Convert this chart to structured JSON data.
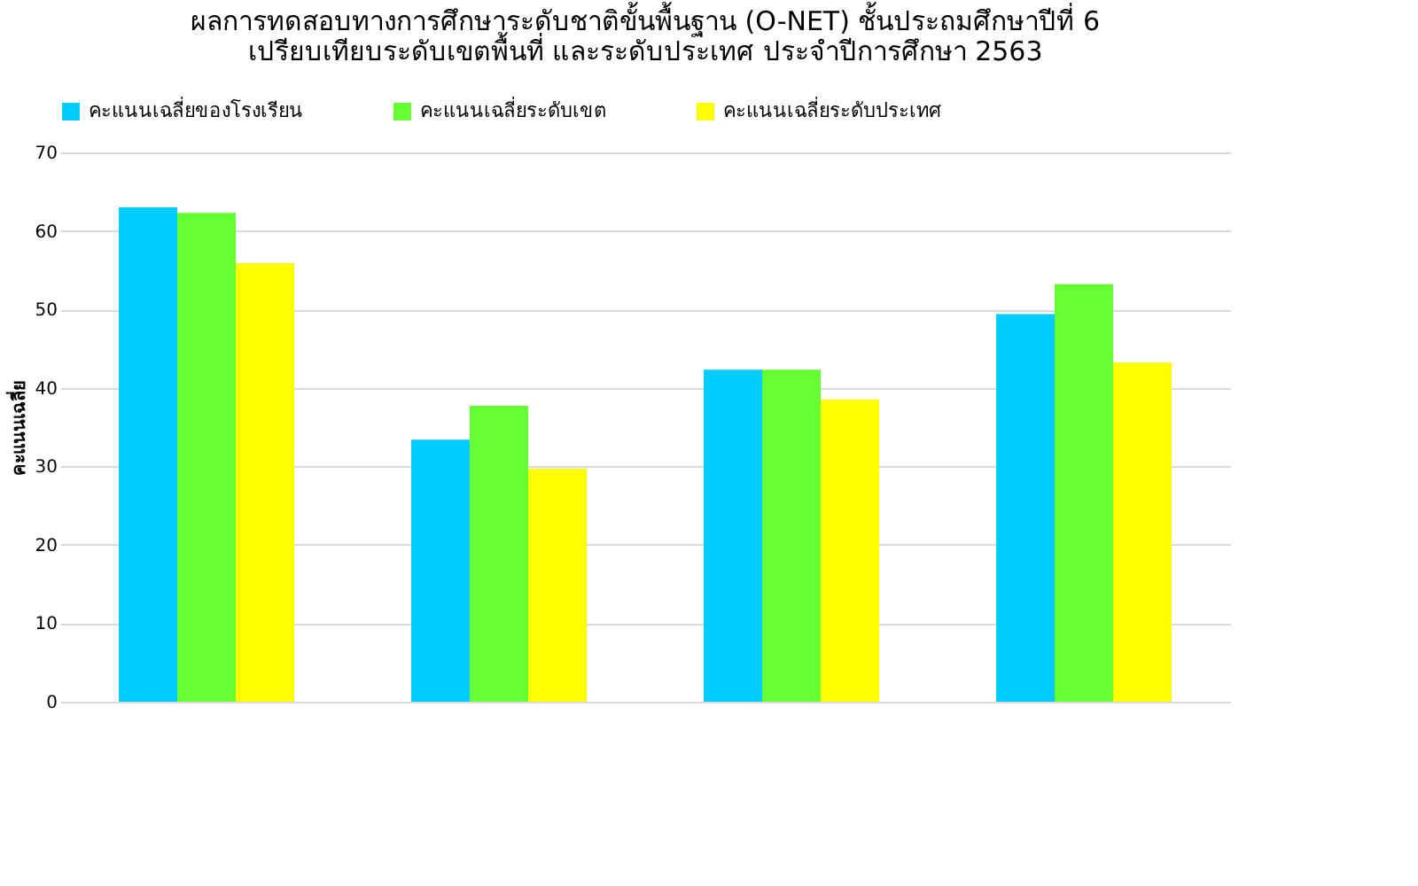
{
  "chart_data": {
    "type": "bar",
    "title": [
      "ผลการทดสอบทางการศึกษาระดับชาติขั้นพื้นฐาน (O-NET) ชั้นประถมศึกษาปีที่ 6",
      "เปรียบเทียบระดับเขตพื้นที่ และระดับประเทศ ประจำปีการศึกษา  2563"
    ],
    "ylabel": "คะแนนเฉลี่ย",
    "categories": [
      null,
      null,
      null,
      null
    ],
    "series": [
      {
        "name": "คะแนนเฉลี่ยของโรงเรียน",
        "color": "#00ccff",
        "values": [
          63.0,
          33.4,
          42.3,
          49.4
        ]
      },
      {
        "name": "คะแนนเฉลี่ยระดับเขต",
        "color": "#66ff33",
        "values": [
          62.3,
          37.7,
          42.3,
          53.2
        ]
      },
      {
        "name": "คะแนนเฉลี่ยระดับประเทศ",
        "color": "#ffff00",
        "values": [
          55.9,
          29.7,
          38.5,
          43.2
        ]
      }
    ],
    "ylim": [
      0,
      70
    ],
    "yticks": [
      0,
      10,
      20,
      30,
      40,
      50,
      60,
      70
    ],
    "grid": "y",
    "legend": "top"
  }
}
